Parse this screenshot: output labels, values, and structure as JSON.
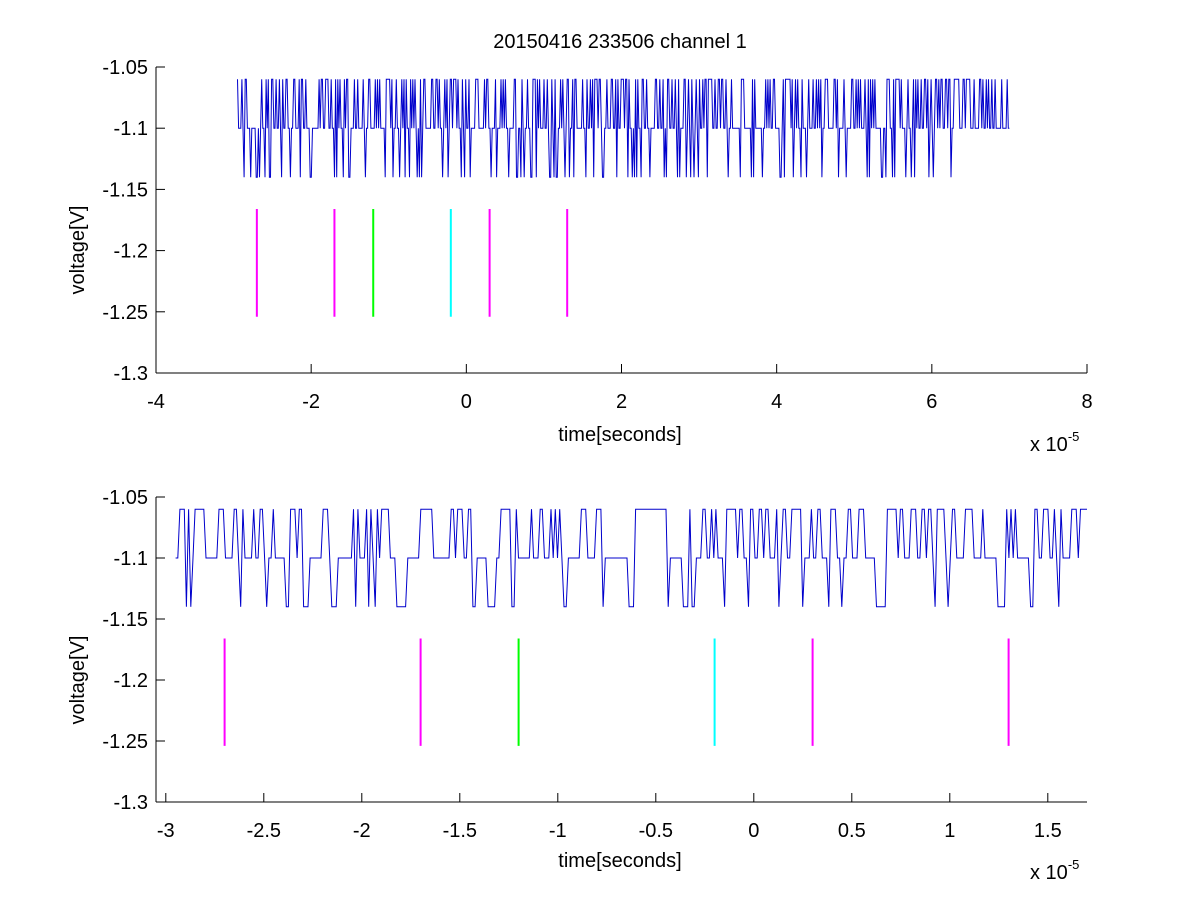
{
  "chart_data": [
    {
      "type": "line",
      "title": "20150416 233506 channel 1",
      "xlabel": "time[seconds]",
      "ylabel": "voltage[V]",
      "x_multiplier_label": {
        "base": "x 10",
        "exponent": "-5"
      },
      "xlim": [
        -4,
        8
      ],
      "ylim": [
        -1.3,
        -1.05
      ],
      "xticks": [
        -4,
        -2,
        0,
        2,
        4,
        6,
        8
      ],
      "xtick_labels": [
        "-4",
        "-2",
        "0",
        "2",
        "4",
        "6",
        "8"
      ],
      "yticks": [
        -1.3,
        -1.25,
        -1.2,
        -1.15,
        -1.1,
        -1.05
      ],
      "ytick_labels": [
        "-1.3",
        "-1.25",
        "-1.2",
        "-1.15",
        "-1.1",
        "-1.05"
      ],
      "grid": false,
      "signal": {
        "color": "#0000cc",
        "x_range": [
          -2.95,
          7.0
        ],
        "levels": [
          -1.06,
          -1.1,
          -1.14
        ],
        "baseline": -1.1
      },
      "markers": [
        {
          "x": -2.7,
          "y_range": [
            -1.254,
            -1.166
          ],
          "color": "#ff00ff"
        },
        {
          "x": -1.7,
          "y_range": [
            -1.254,
            -1.166
          ],
          "color": "#ff00ff"
        },
        {
          "x": -1.2,
          "y_range": [
            -1.254,
            -1.166
          ],
          "color": "#00ff00"
        },
        {
          "x": -0.2,
          "y_range": [
            -1.254,
            -1.166
          ],
          "color": "#00ffff"
        },
        {
          "x": 0.3,
          "y_range": [
            -1.254,
            -1.166
          ],
          "color": "#ff00ff"
        },
        {
          "x": 1.3,
          "y_range": [
            -1.254,
            -1.166
          ],
          "color": "#ff00ff"
        }
      ]
    },
    {
      "type": "line",
      "title": "",
      "xlabel": "time[seconds]",
      "ylabel": "voltage[V]",
      "x_multiplier_label": {
        "base": "x 10",
        "exponent": "-5"
      },
      "xlim": [
        -3.05,
        1.7
      ],
      "ylim": [
        -1.3,
        -1.05
      ],
      "xticks": [
        -3,
        -2.5,
        -2,
        -1.5,
        -1,
        -0.5,
        0,
        0.5,
        1,
        1.5
      ],
      "xtick_labels": [
        "-3",
        "-2.5",
        "-2",
        "-1.5",
        "-1",
        "-0.5",
        "0",
        "0.5",
        "1",
        "1.5"
      ],
      "yticks": [
        -1.3,
        -1.25,
        -1.2,
        -1.15,
        -1.1,
        -1.05
      ],
      "ytick_labels": [
        "-1.3",
        "-1.25",
        "-1.2",
        "-1.15",
        "-1.1",
        "-1.05"
      ],
      "grid": false,
      "signal": {
        "color": "#0000cc",
        "x_range": [
          -2.95,
          1.7
        ],
        "levels": [
          -1.06,
          -1.1,
          -1.14
        ],
        "baseline": -1.1
      },
      "markers": [
        {
          "x": -2.7,
          "y_range": [
            -1.254,
            -1.166
          ],
          "color": "#ff00ff"
        },
        {
          "x": -1.7,
          "y_range": [
            -1.254,
            -1.166
          ],
          "color": "#ff00ff"
        },
        {
          "x": -1.2,
          "y_range": [
            -1.254,
            -1.166
          ],
          "color": "#00ff00"
        },
        {
          "x": -0.2,
          "y_range": [
            -1.254,
            -1.166
          ],
          "color": "#00ffff"
        },
        {
          "x": 0.3,
          "y_range": [
            -1.254,
            -1.166
          ],
          "color": "#ff00ff"
        },
        {
          "x": 1.3,
          "y_range": [
            -1.254,
            -1.166
          ],
          "color": "#ff00ff"
        }
      ]
    }
  ]
}
